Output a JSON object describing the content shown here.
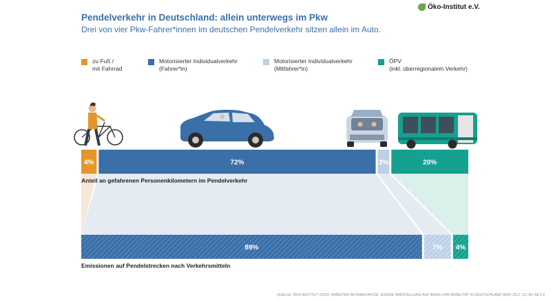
{
  "header": {
    "title": "Pendelverkehr in Deutschland: allein unterwegs im Pkw",
    "subtitle": "Drei von vier Pkw-Fahrer*innen im deutschen Pendelverkehr sitzen allein im Auto.",
    "logo_text": "Öko-Institut e.V."
  },
  "legend": [
    {
      "label": "zu Fuß /\nmit Fahrrad",
      "color": "#e3962a"
    },
    {
      "label": "Motorisierter Individualverkehr\n(Fahrer*in)",
      "color": "#3a6fa8"
    },
    {
      "label": "Motorisierter Individualverkehr\n(Mitfahrer*in)",
      "color": "#bcd0e6"
    },
    {
      "label": "ÖPV\n(inkl. überregionalem Verkehr)",
      "color": "#16a08f"
    }
  ],
  "chart_data": {
    "type": "bar",
    "categories": [
      "zu Fuß / mit Fahrrad",
      "Motorisierter Individualverkehr (Fahrer*in)",
      "Motorisierter Individualverkehr (Mitfahrer*in)",
      "ÖPV (inkl. überregionalem Verkehr)"
    ],
    "series": [
      {
        "name": "Anteil an gefahrenen Personenkilometern im Pendelverkehr",
        "values": [
          4,
          72,
          3,
          20
        ],
        "labels": [
          "4%",
          "72%",
          "3%",
          "20%"
        ]
      },
      {
        "name": "Emissionen auf Pendelstrecken nach Verkehrsmitteln",
        "values": [
          0,
          89,
          7,
          4
        ],
        "labels": [
          "",
          "89%",
          "7%",
          "4%"
        ]
      }
    ],
    "unit": "%"
  },
  "footer": {
    "source": "QUELLE: ÖKO-INSTITUT (2022): ARBEITEN IM HOMEOFFICE. EIGENE DARSTELLUNG AUF BASIS VON MOBILITÄT IN DEUTSCHLAND (MID) 2017, CC BY-SA 2.0"
  }
}
